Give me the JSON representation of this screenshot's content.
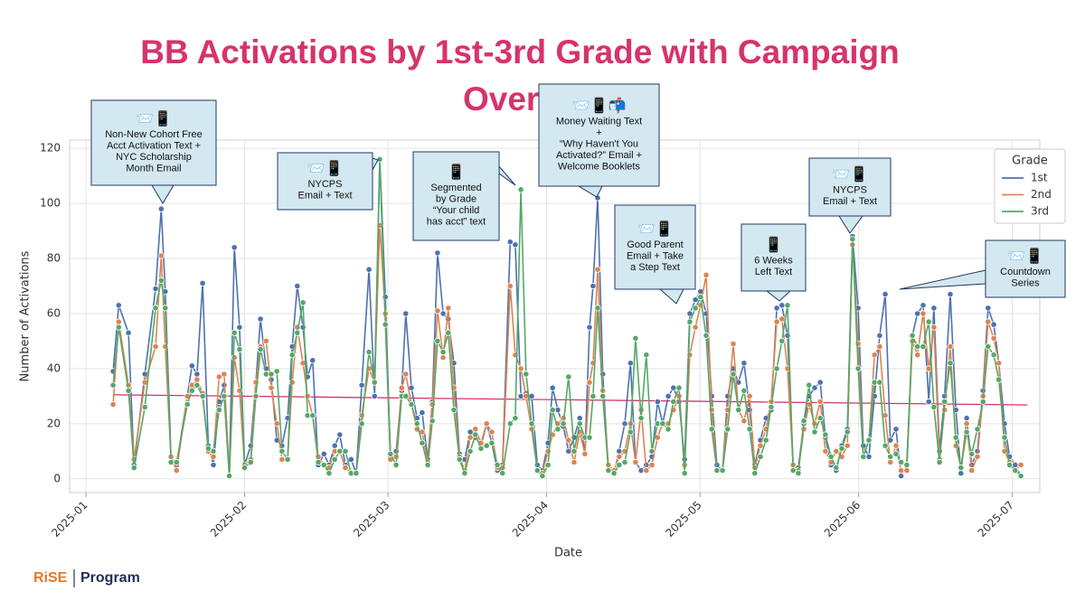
{
  "chart_data": {
    "type": "line",
    "title": [
      "BB Activations by 1st-3rd Grade with Campaign",
      "Over"
    ],
    "x_label": "Date",
    "y_label": "Number of Activations",
    "x": [
      5.3,
      6.4,
      8.3,
      9.4,
      11.5,
      13.6,
      14.7,
      15.5,
      16.6,
      17.7,
      19.8,
      20.7,
      21.7,
      22.8,
      23.9,
      24.9,
      26,
      27,
      28,
      29,
      30,
      31,
      32.2,
      33.2,
      34.1,
      35.2,
      36.2,
      37.3,
      38.3,
      39.4,
      40.3,
      41.3,
      42.4,
      43.3,
      44.3,
      45.4,
      46.5,
      47.5,
      48.6,
      49.6,
      50.7,
      51.8,
      52.8,
      53.9,
      55.3,
      56.4,
      57.4,
      58.5,
      59.5,
      60.6,
      61.7,
      62.5,
      63.6,
      64.7,
      65.7,
      66.8,
      67.7,
      68.7,
      69.8,
      70.8,
      71.9,
      73,
      74,
      75.1,
      76.1,
      77.2,
      78.3,
      79.3,
      80.4,
      81.4,
      82.9,
      83.9,
      85,
      86,
      87.1,
      88.2,
      89.2,
      90.3,
      91.2,
      92.2,
      93.3,
      94.3,
      95.4,
      96.5,
      97.5,
      98.4,
      99.1,
      100,
      101,
      102.1,
      103.2,
      104.2,
      105.3,
      106.4,
      107.4,
      108.5,
      109.5,
      110.6,
      111.7,
      112.7,
      113.8,
      114.8,
      115.9,
      117,
      118,
      119.1,
      120.1,
      121.2,
      122.3,
      123.3,
      124.4,
      125.4,
      126.5,
      127.5,
      128.6,
      129.7,
      130.7,
      131.8,
      132.9,
      133.9,
      135,
      136,
      137.1,
      138.2,
      139.2,
      140.3,
      141.3,
      142.4,
      143.5,
      144.5,
      145.6,
      146.6,
      147.7,
      148.8,
      149.8,
      150.9,
      151.9,
      153,
      154.1,
      155.1,
      156.2,
      157.2,
      158.3,
      159.3,
      160.4,
      161.5,
      162.5,
      163.6,
      164.7,
      165.7,
      166.8,
      167.8,
      168.9,
      170,
      171,
      172.1,
      173.1,
      174.2,
      175.3,
      176.3,
      177.4,
      178.4,
      179.5,
      180.5,
      181.6,
      182.7
    ],
    "series": [
      {
        "name": "1st",
        "color": "#4c72b0",
        "values": [
          39,
          63,
          53,
          5,
          38,
          69,
          98,
          68,
          8,
          5,
          30,
          41,
          38,
          71,
          12,
          5,
          28,
          34,
          1,
          84,
          55,
          5,
          12,
          35,
          58,
          40,
          36,
          14,
          12,
          22,
          48,
          70,
          55,
          37,
          43,
          5,
          9,
          5,
          12,
          16,
          5,
          7,
          2,
          34,
          76,
          30,
          116,
          66,
          8,
          10,
          32,
          60,
          33,
          22,
          24,
          7,
          28,
          82,
          60,
          58,
          42,
          9,
          7,
          17,
          15,
          12,
          20,
          13,
          3,
          5,
          86,
          85,
          30,
          31,
          30,
          5,
          3,
          13,
          33,
          25,
          19,
          10,
          15,
          22,
          9,
          55,
          70,
          102,
          38,
          3,
          2,
          10,
          20,
          42,
          6,
          3,
          5,
          8,
          28,
          20,
          30,
          33,
          28,
          7,
          60,
          65,
          68,
          60,
          30,
          5,
          3,
          30,
          40,
          35,
          42,
          25,
          5,
          14,
          22,
          25,
          62,
          63,
          52,
          5,
          4,
          20,
          30,
          33,
          35,
          15,
          5,
          3,
          12,
          18,
          88,
          62,
          12,
          8,
          30,
          52,
          67,
          14,
          18,
          1,
          5,
          52,
          60,
          63,
          28,
          62,
          10,
          30,
          67,
          25,
          2,
          22,
          5,
          10,
          32,
          62,
          56,
          42,
          20,
          8,
          5,
          1
        ]
      },
      {
        "name": "2nd",
        "color": "#dd8452",
        "values": [
          27,
          57,
          34,
          7,
          35,
          48,
          81,
          48,
          8,
          3,
          30,
          34,
          36,
          31,
          10,
          8,
          37,
          38,
          1,
          44,
          32,
          5,
          7,
          35,
          48,
          50,
          33,
          20,
          7,
          7,
          35,
          55,
          42,
          30,
          23,
          8,
          5,
          4,
          10,
          10,
          4,
          2,
          2,
          23,
          40,
          35,
          92,
          60,
          7,
          8,
          33,
          38,
          27,
          18,
          17,
          6,
          27,
          61,
          44,
          62,
          33,
          8,
          3,
          15,
          18,
          13,
          20,
          17,
          4,
          4,
          70,
          45,
          40,
          30,
          18,
          3,
          2,
          10,
          16,
          20,
          22,
          14,
          6,
          17,
          9,
          35,
          42,
          76,
          32,
          5,
          3,
          8,
          10,
          20,
          6,
          25,
          3,
          5,
          15,
          20,
          20,
          25,
          30,
          5,
          45,
          55,
          63,
          74,
          25,
          3,
          3,
          25,
          49,
          25,
          21,
          30,
          4,
          12,
          18,
          28,
          57,
          58,
          40,
          5,
          3,
          18,
          27,
          20,
          28,
          10,
          6,
          10,
          8,
          12,
          85,
          49,
          8,
          14,
          45,
          48,
          23,
          6,
          12,
          3,
          3,
          50,
          45,
          60,
          40,
          55,
          7,
          25,
          48,
          12,
          4,
          20,
          3,
          8,
          30,
          57,
          51,
          42,
          10,
          6,
          3,
          5
        ]
      },
      {
        "name": "3rd",
        "color": "#55a868",
        "values": [
          34,
          55,
          32,
          4,
          26,
          62,
          72,
          62,
          6,
          6,
          27,
          32,
          34,
          30,
          11,
          10,
          25,
          30,
          1,
          53,
          47,
          4,
          6,
          30,
          47,
          38,
          38,
          39,
          10,
          7,
          45,
          53,
          64,
          23,
          23,
          6,
          5,
          2,
          7,
          10,
          10,
          2,
          2,
          20,
          46,
          35,
          116,
          56,
          9,
          5,
          30,
          30,
          27,
          20,
          13,
          5,
          21,
          50,
          46,
          53,
          25,
          7,
          2,
          10,
          16,
          11,
          12,
          13,
          5,
          2,
          20,
          22,
          105,
          38,
          20,
          3,
          1,
          5,
          25,
          18,
          20,
          37,
          10,
          20,
          15,
          15,
          30,
          62,
          30,
          3,
          2,
          5,
          6,
          17,
          51,
          22,
          45,
          10,
          20,
          20,
          18,
          28,
          33,
          2,
          57,
          62,
          66,
          52,
          18,
          3,
          3,
          18,
          38,
          25,
          32,
          18,
          2,
          8,
          14,
          26,
          40,
          50,
          63,
          3,
          2,
          21,
          34,
          17,
          22,
          16,
          8,
          4,
          11,
          17,
          87,
          40,
          8,
          14,
          35,
          35,
          12,
          8,
          9,
          6,
          5,
          52,
          48,
          48,
          57,
          26,
          6,
          28,
          42,
          15,
          4,
          17,
          9,
          18,
          28,
          48,
          45,
          36,
          15,
          5,
          3,
          1
        ]
      }
    ],
    "trend_line": {
      "color": "#d6336c",
      "x": [
        5.3,
        184
      ],
      "values": [
        30.5,
        26.8
      ]
    },
    "xlim": [
      -3.2,
      186.4
    ],
    "xticks": [
      {
        "value": 0,
        "label": "2025-01"
      },
      {
        "value": 31,
        "label": "2025-02"
      },
      {
        "value": 59,
        "label": "2025-03"
      },
      {
        "value": 90,
        "label": "2025-04"
      },
      {
        "value": 120,
        "label": "2025-05"
      },
      {
        "value": 151,
        "label": "2025-06"
      },
      {
        "value": 181,
        "label": "2025-07"
      }
    ],
    "ylim": [
      -5,
      123
    ],
    "yticks": [
      0,
      20,
      40,
      60,
      80,
      100,
      120
    ],
    "grid": true,
    "legend": {
      "title": "Grade",
      "position": "upper right"
    },
    "annotations": [
      {
        "icons": "📨📱",
        "lines": [
          "Non-New Cohort Free",
          "Acct Activation Text +",
          "NYC Scholarship",
          "Month Email"
        ]
      },
      {
        "icons": "📨📱",
        "lines": [
          "NYCPS",
          "Email + Text"
        ]
      },
      {
        "icons": "📱",
        "lines": [
          "Segmented",
          "by Grade",
          "“Your child",
          "has acct” text"
        ]
      },
      {
        "icons": "📨📱📬",
        "lines": [
          "Money Waiting Text",
          "+",
          "“Why Haven't You",
          "Activated?” Email +",
          "Welcome Booklets"
        ]
      },
      {
        "icons": "📨📱",
        "lines": [
          "Good Parent",
          "Email + Take",
          "a Step Text"
        ]
      },
      {
        "icons": "📱",
        "lines": [
          "6 Weeks",
          "Left Text"
        ]
      },
      {
        "icons": "📨📱",
        "lines": [
          "NYCPS",
          "Email + Text"
        ]
      },
      {
        "icons": "📨📱",
        "lines": [
          "Countdown",
          "Series"
        ]
      }
    ]
  },
  "footer": {
    "logo": "RiSE",
    "program": "Program"
  }
}
